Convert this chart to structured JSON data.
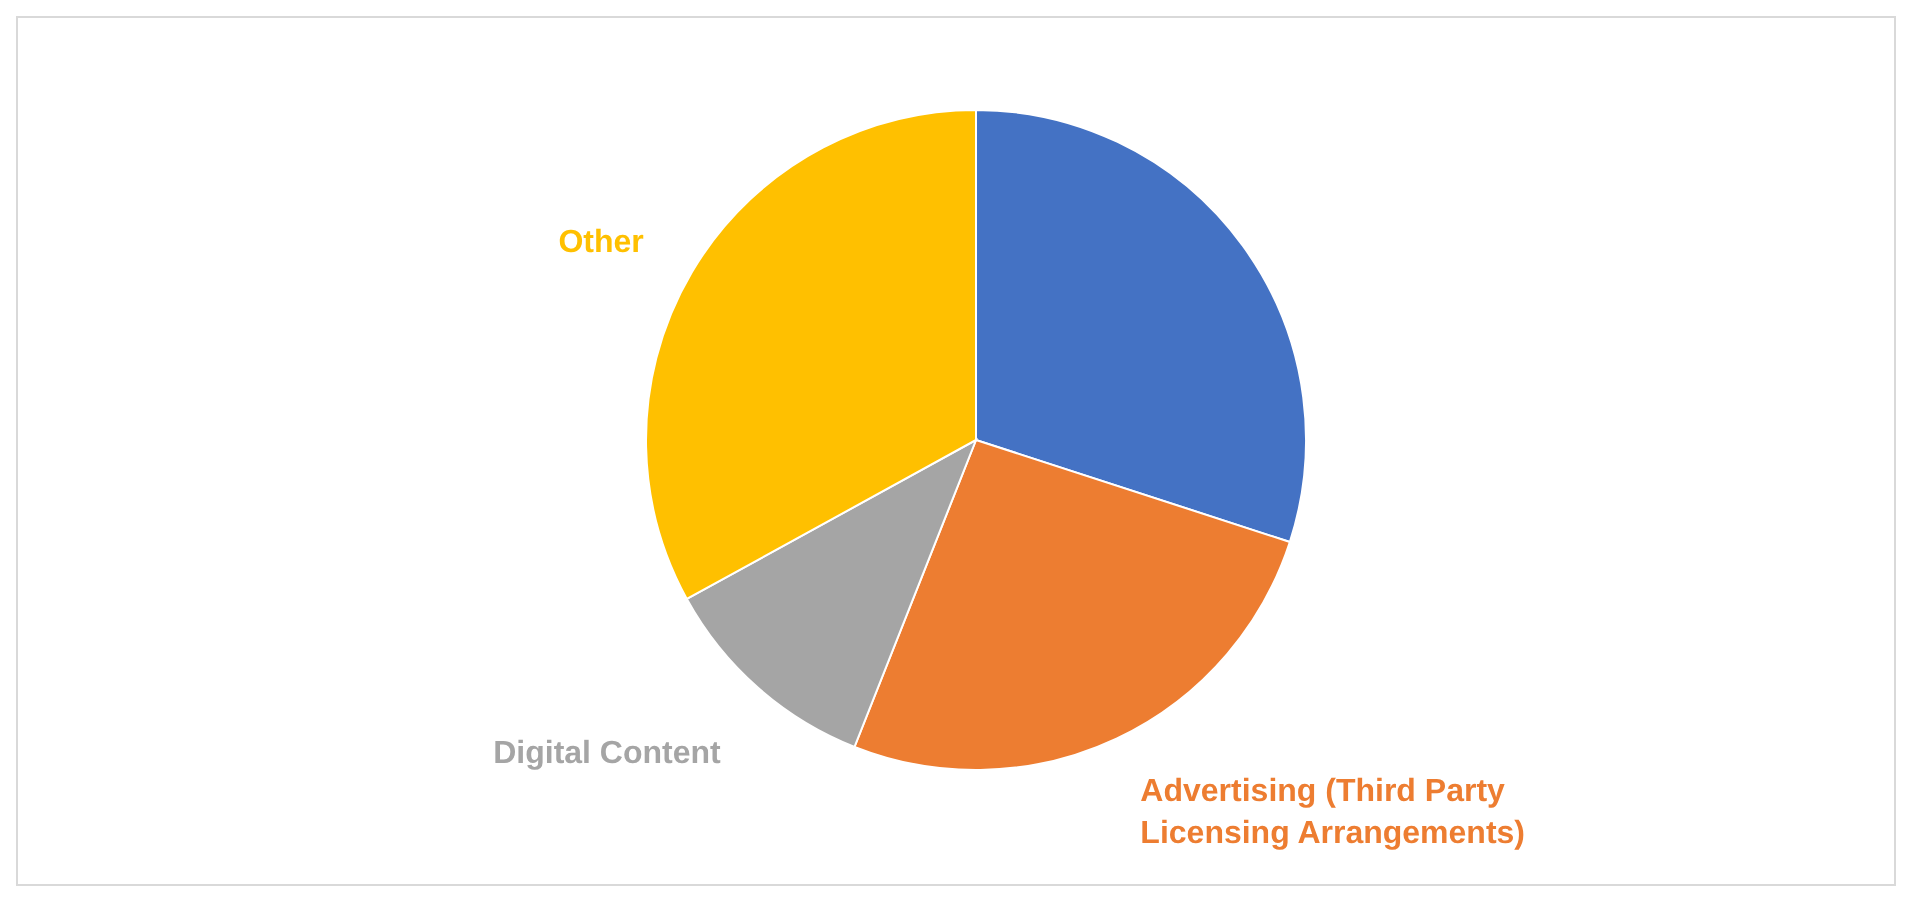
{
  "chart_data": {
    "type": "pie",
    "categories": [
      null,
      "Advertising (Third Party Licensing Arrangements)",
      "Digital Content",
      "Other"
    ],
    "values": [
      30,
      26,
      11,
      33
    ],
    "colors": [
      "#4472c4",
      "#ed7d31",
      "#a5a5a5",
      "#ffc000"
    ]
  }
}
